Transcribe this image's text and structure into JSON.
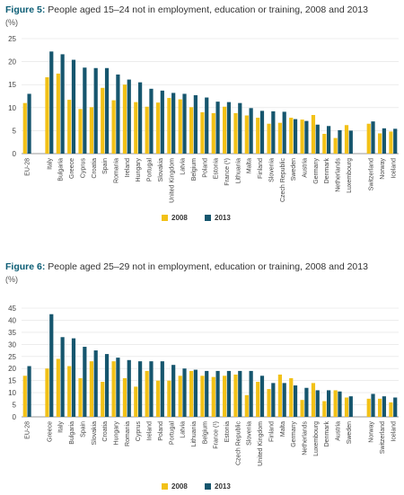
{
  "colors": {
    "c2008": "#f2c117",
    "c2013": "#16566e",
    "grid": "#e0e0e0",
    "axis": "#777777",
    "text": "#444444",
    "title": "#0a5c74"
  },
  "chart_data": [
    {
      "type": "bar",
      "label": "Figure 5:",
      "title": "People aged 15–24 not in employment, education or training, 2008 and 2013",
      "unit": "(%)",
      "ylim": [
        0,
        25
      ],
      "yticks": [
        "0",
        "5",
        "10",
        "15",
        "20",
        "25"
      ],
      "legend": [
        "2008",
        "2013"
      ],
      "categories": [
        "EU-28",
        "",
        "Italy",
        "Bulgaria",
        "Greece",
        "Cyprus",
        "Croatia",
        "Spain",
        "Romania",
        "Ireland",
        "Hungary",
        "Portugal",
        "Slovakia",
        "United Kingdom",
        "Latvia",
        "Belgium",
        "Poland",
        "Estonia",
        "France (¹)",
        "Lithuania",
        "Malta",
        "Finland",
        "Slovenia",
        "Czech Republic",
        "Sweden",
        "Austria",
        "Germany",
        "Denmark",
        "Netherlands",
        "Luxembourg",
        "",
        "Switzerland",
        "Norway",
        "Iceland"
      ],
      "series": [
        {
          "name": "2008",
          "values": [
            11,
            null,
            16.6,
            17.4,
            11.7,
            9.7,
            10.1,
            14.3,
            11.6,
            15,
            11.2,
            10.2,
            11.1,
            12.1,
            11.8,
            10.1,
            9,
            8.8,
            10.2,
            8.8,
            8.3,
            7.8,
            6.5,
            6.7,
            7.8,
            7.4,
            8.4,
            4.3,
            3.4,
            6.2,
            null,
            6.5,
            4.4,
            4.8
          ]
        },
        {
          "name": "2013",
          "values": [
            13,
            null,
            22.2,
            21.6,
            20.4,
            18.7,
            18.6,
            18.6,
            17.2,
            16.1,
            15.5,
            14.1,
            13.7,
            13.2,
            13,
            12.7,
            12.2,
            11.3,
            11.2,
            11,
            9.9,
            9.3,
            9.2,
            9.1,
            7.5,
            7.1,
            6.3,
            6,
            5.1,
            5,
            null,
            7,
            5.5,
            5.4
          ]
        }
      ]
    },
    {
      "type": "bar",
      "label": "Figure 6:",
      "title": "People aged 25–29 not in employment, education or training, 2008 and 2013",
      "unit": "(%)",
      "ylim": [
        0,
        45
      ],
      "yticks": [
        "0",
        "5",
        "10",
        "15",
        "20",
        "25",
        "30",
        "35",
        "40",
        "45"
      ],
      "legend": [
        "2008",
        "2013"
      ],
      "categories": [
        "EU-28",
        "",
        "Greece",
        "Italy",
        "Bulgaria",
        "Spain",
        "Slovakia",
        "Croatia",
        "Hungary",
        "Romania",
        "Cyprus",
        "Ireland",
        "Poland",
        "Portugal",
        "Latvia",
        "Lithuania",
        "Belgium",
        "France (¹)",
        "Estonia",
        "Czech Republic",
        "Slovenia",
        "United Kingdom",
        "Finland",
        "Malta",
        "Germany",
        "Netherlands",
        "Luxembourg",
        "Denmark",
        "Austria",
        "Sweden",
        "",
        "Norway",
        "Switzerland",
        "Iceland"
      ],
      "series": [
        {
          "name": "2008",
          "values": [
            17,
            null,
            20,
            24,
            21,
            16,
            23,
            14.5,
            23,
            16,
            12.5,
            19,
            15,
            15,
            17,
            19,
            17,
            16.5,
            17,
            17.5,
            9,
            14.5,
            11.5,
            17.5,
            16,
            7,
            14,
            6.5,
            11,
            8,
            null,
            7.5,
            7.5,
            6
          ]
        },
        {
          "name": "2013",
          "values": [
            21,
            null,
            42.5,
            33,
            32.5,
            29,
            27.5,
            26,
            24.5,
            23.5,
            23,
            23,
            23,
            21.5,
            20,
            19.5,
            19,
            19,
            19,
            19,
            19,
            17,
            14,
            14,
            13,
            12,
            11,
            11,
            10.5,
            8.5,
            null,
            9.5,
            8.5,
            8
          ]
        }
      ]
    }
  ]
}
